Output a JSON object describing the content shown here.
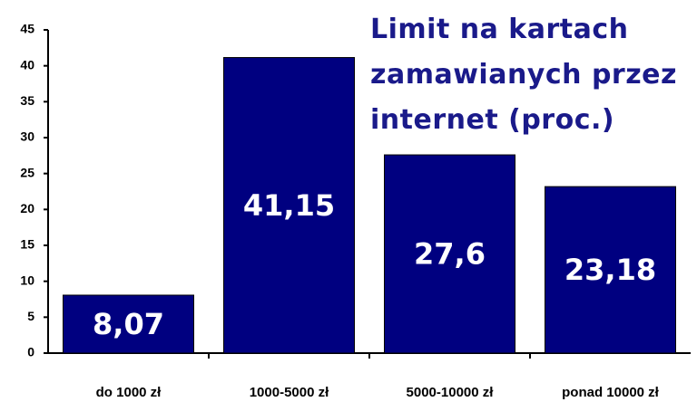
{
  "chart_data": {
    "type": "bar",
    "title": "Limit na kartach zamawianych przez internet (proc.)",
    "categories": [
      "do 1000 zł",
      "1000-5000 zł",
      "5000-10000 zł",
      "ponad 10000 zł"
    ],
    "values": [
      8.07,
      41.15,
      27.6,
      23.18
    ],
    "value_labels": [
      "8,07",
      "41,15",
      "27,6",
      "23,18"
    ],
    "color": "#000080",
    "ylim": [
      0,
      45
    ],
    "yticks": [
      0,
      5,
      10,
      15,
      20,
      25,
      30,
      35,
      40,
      45
    ],
    "grid": false
  }
}
